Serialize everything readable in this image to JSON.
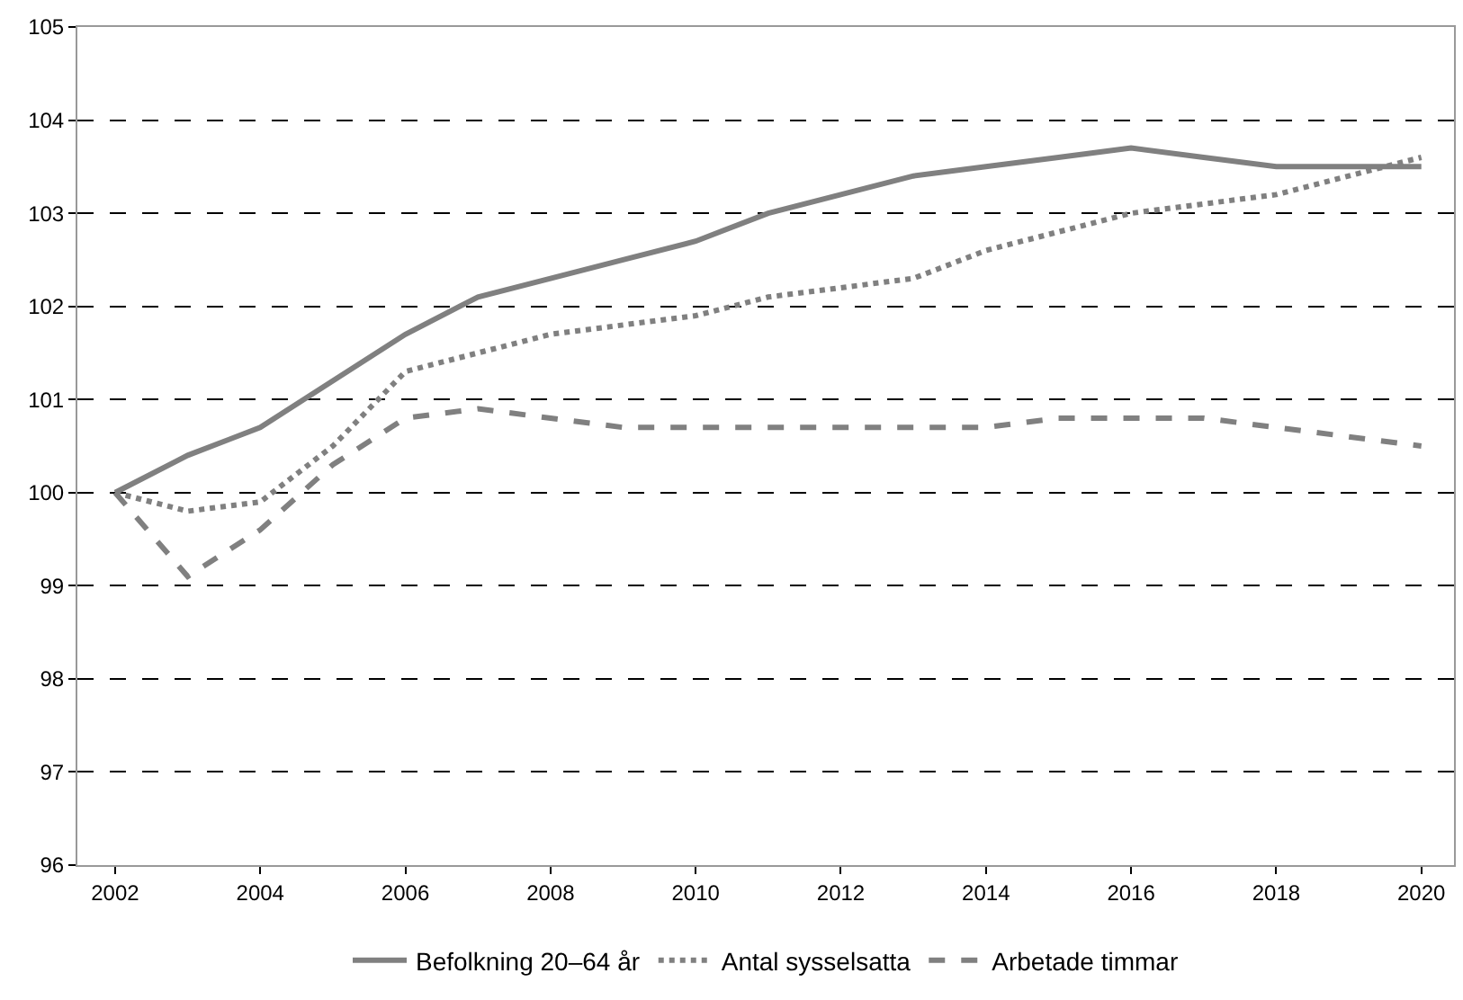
{
  "chart_data": {
    "type": "line",
    "x": [
      2002,
      2003,
      2004,
      2005,
      2006,
      2007,
      2008,
      2009,
      2010,
      2011,
      2012,
      2013,
      2014,
      2015,
      2016,
      2017,
      2018,
      2019,
      2020
    ],
    "series": [
      {
        "name": "Befolkning 20–64 år",
        "color": "#808080",
        "line_style": "solid",
        "values": [
          100,
          100.4,
          100.7,
          101.2,
          101.7,
          102.1,
          102.3,
          102.5,
          102.7,
          103.0,
          103.2,
          103.4,
          103.5,
          103.6,
          103.7,
          103.6,
          103.5,
          103.5,
          103.5
        ]
      },
      {
        "name": "Antal sysselsatta",
        "color": "#808080",
        "line_style": "dotted",
        "values": [
          100,
          99.8,
          99.9,
          100.5,
          101.3,
          101.5,
          101.7,
          101.8,
          101.9,
          102.1,
          102.2,
          102.3,
          102.6,
          102.8,
          103.0,
          103.1,
          103.2,
          103.4,
          103.6
        ]
      },
      {
        "name": "Arbetade timmar",
        "color": "#808080",
        "line_style": "dashed",
        "values": [
          100,
          99.1,
          99.6,
          100.3,
          100.8,
          100.9,
          100.8,
          100.7,
          100.7,
          100.7,
          100.7,
          100.7,
          100.7,
          100.8,
          100.8,
          100.8,
          100.7,
          100.6,
          100.5
        ]
      }
    ],
    "xlim": [
      2001.48,
      2020.45
    ],
    "xticks": [
      2002,
      2004,
      2006,
      2008,
      2010,
      2012,
      2014,
      2016,
      2018,
      2020
    ],
    "ylim": [
      96,
      105
    ],
    "yticks": [
      96,
      97,
      98,
      99,
      100,
      101,
      102,
      103,
      104,
      105
    ],
    "grid": "y",
    "legend": "bottom",
    "marker": "none"
  }
}
